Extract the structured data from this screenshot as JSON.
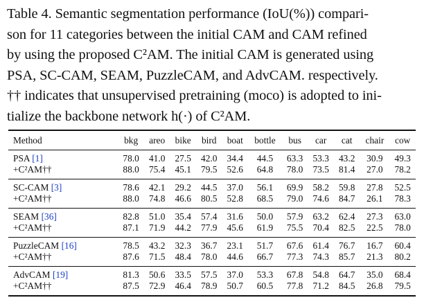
{
  "caption": {
    "lines": [
      "Table 4.  Semantic segmentation performance (IoU(%)) compari-",
      "son for 11 categories between the initial CAM and CAM refined",
      "by using the proposed C²AM. The initial CAM is generated using",
      "PSA, SC-CAM, SEAM, PuzzleCAM, and AdvCAM. respectively.",
      "†† indicates that unsupervised pretraining (moco) is adopted to ini-",
      "tialize the backbone network h(·) of C²AM."
    ]
  },
  "table": {
    "headers": [
      "Method",
      "bkg",
      "areo",
      "bike",
      "bird",
      "boat",
      "bottle",
      "bus",
      "car",
      "cat",
      "chair",
      "cow"
    ],
    "refined_label": "+C²AM††",
    "groups": [
      {
        "method": "PSA",
        "cite": "[1]",
        "base": [
          "78.0",
          "41.0",
          "27.5",
          "42.0",
          "34.4",
          "44.5",
          "63.3",
          "53.3",
          "43.2",
          "30.9",
          "49.3"
        ],
        "refined": [
          "88.0",
          "75.4",
          "45.1",
          "79.5",
          "52.6",
          "64.8",
          "78.0",
          "73.5",
          "81.4",
          "27.0",
          "78.2"
        ]
      },
      {
        "method": "SC-CAM",
        "cite": "[3]",
        "base": [
          "78.6",
          "42.1",
          "29.2",
          "44.5",
          "37.0",
          "56.1",
          "69.9",
          "58.2",
          "59.8",
          "27.8",
          "52.5"
        ],
        "refined": [
          "88.0",
          "74.8",
          "46.6",
          "80.5",
          "52.8",
          "68.5",
          "79.0",
          "74.6",
          "84.7",
          "26.1",
          "78.3"
        ]
      },
      {
        "method": "SEAM",
        "cite": "[36]",
        "base": [
          "82.8",
          "51.0",
          "35.4",
          "57.4",
          "31.6",
          "50.0",
          "57.9",
          "63.2",
          "62.4",
          "27.3",
          "63.0"
        ],
        "refined": [
          "87.1",
          "71.9",
          "44.2",
          "77.9",
          "45.6",
          "61.9",
          "75.5",
          "70.4",
          "82.5",
          "22.5",
          "78.0"
        ]
      },
      {
        "method": "PuzzleCAM",
        "cite": "[16]",
        "base": [
          "78.5",
          "43.2",
          "32.3",
          "36.7",
          "23.1",
          "51.7",
          "67.6",
          "61.4",
          "76.7",
          "16.7",
          "60.4"
        ],
        "refined": [
          "87.6",
          "71.5",
          "48.4",
          "78.0",
          "44.6",
          "66.7",
          "77.3",
          "74.3",
          "85.7",
          "21.3",
          "80.2"
        ]
      },
      {
        "method": "AdvCAM",
        "cite": "[19]",
        "base": [
          "81.3",
          "50.6",
          "33.5",
          "57.5",
          "37.0",
          "53.3",
          "67.8",
          "54.8",
          "64.7",
          "35.0",
          "68.4"
        ],
        "refined": [
          "87.5",
          "72.9",
          "46.4",
          "78.9",
          "50.7",
          "60.5",
          "77.8",
          "71.2",
          "84.5",
          "26.8",
          "79.5"
        ]
      }
    ]
  }
}
